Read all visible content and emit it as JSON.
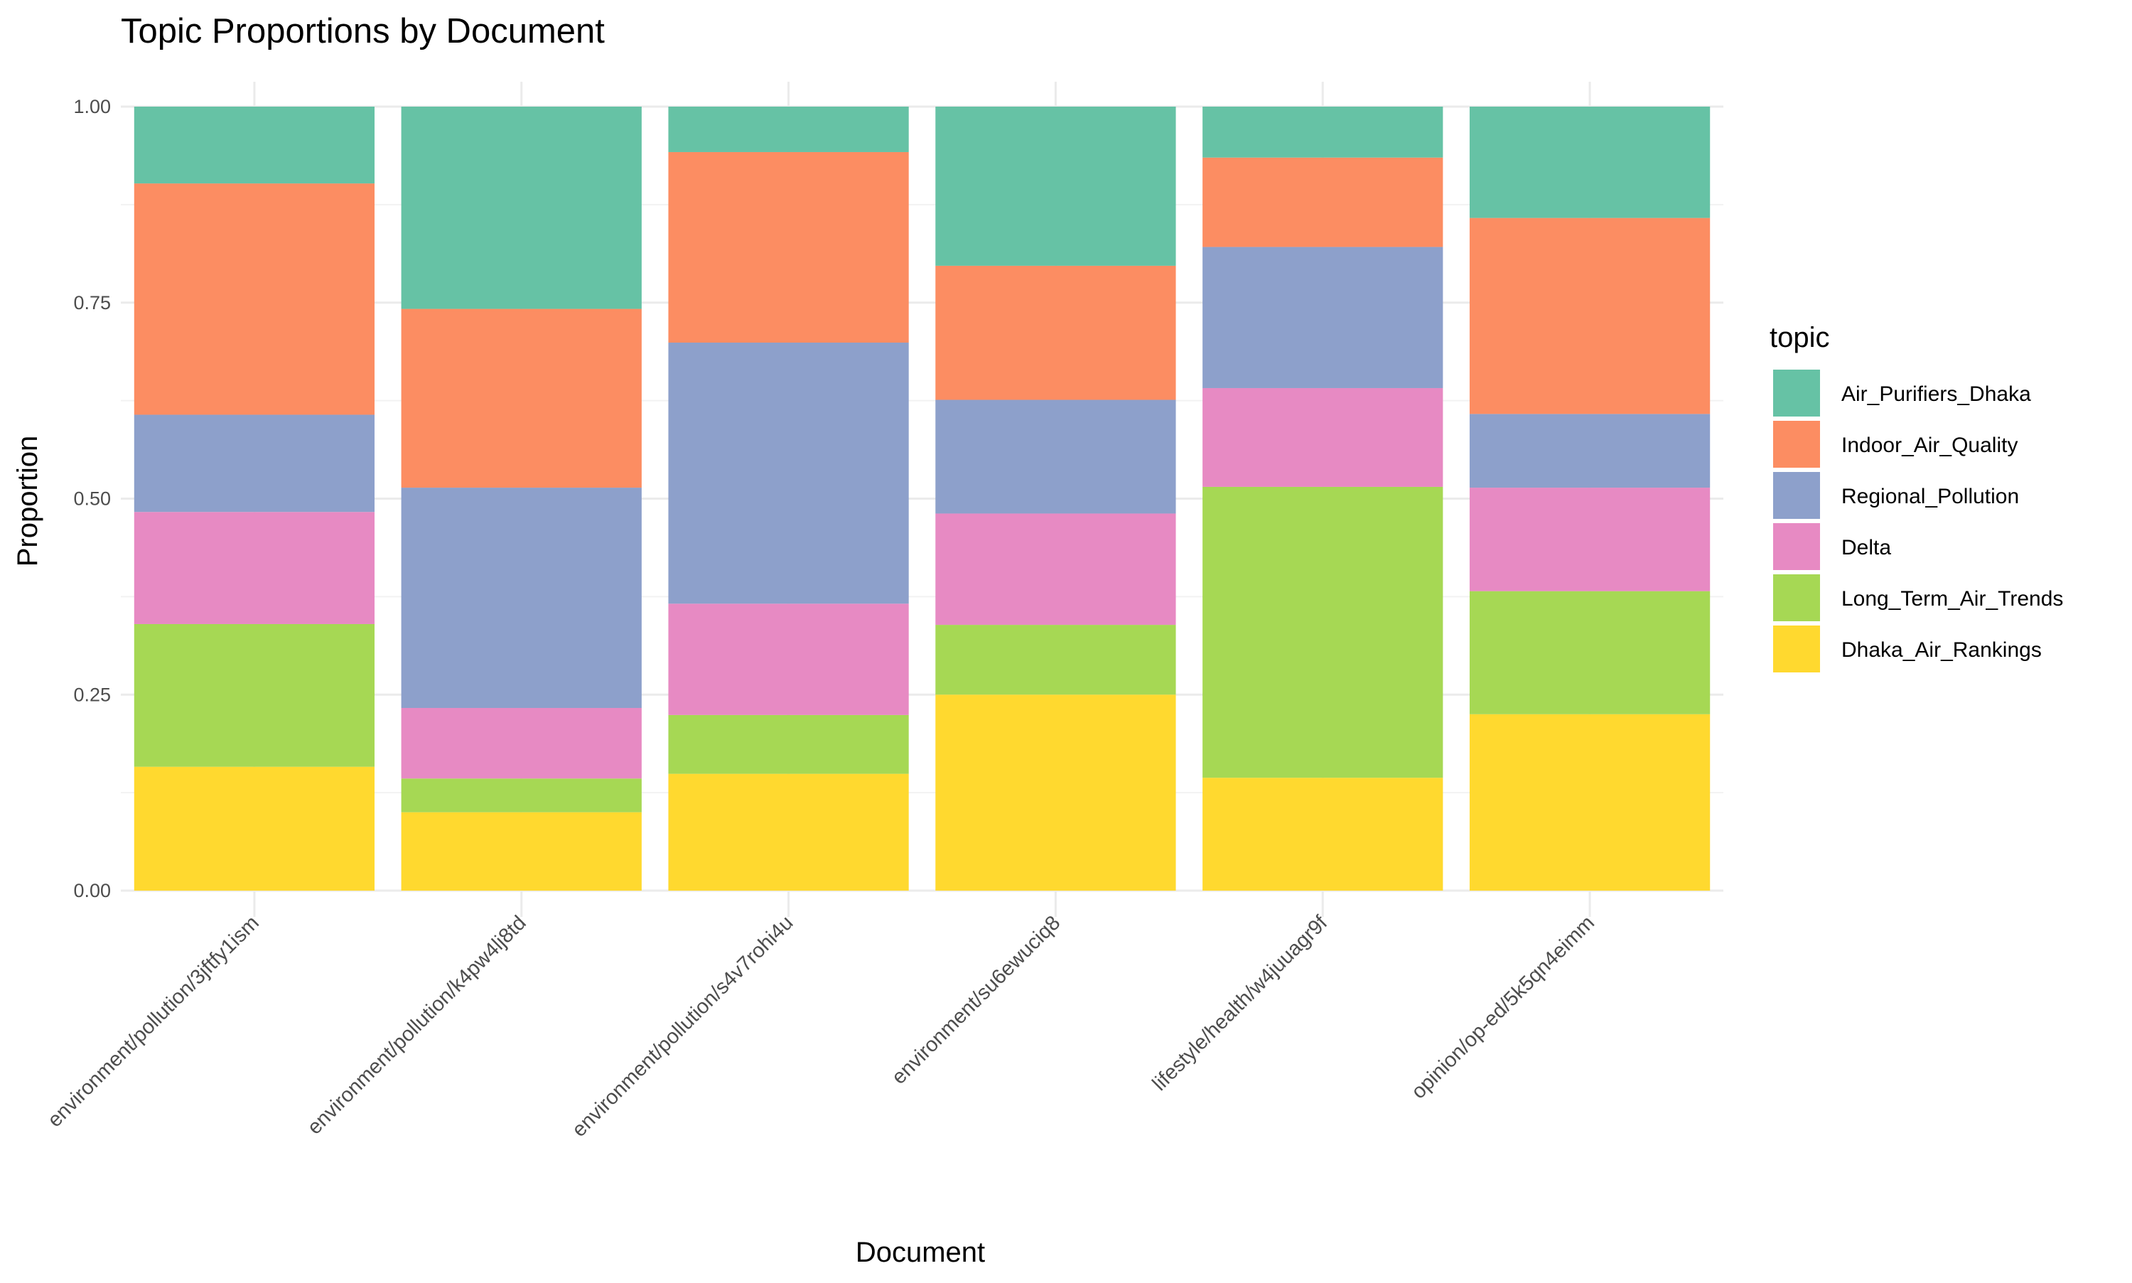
{
  "chart_data": {
    "type": "bar",
    "stacked": true,
    "title": "Topic Proportions by Document",
    "xlabel": "Document",
    "ylabel": "Proportion",
    "ylim": [
      0,
      1
    ],
    "y_ticks": [
      "0.00",
      "0.25",
      "0.50",
      "0.75",
      "1.00"
    ],
    "y_tick_values": [
      0,
      0.25,
      0.5,
      0.75,
      1.0
    ],
    "grid": true,
    "legend_title": "topic",
    "legend_position": "right",
    "categories": [
      "environment/pollution/3jftfy1ism",
      "environment/pollution/k4pw4lj8td",
      "environment/pollution/s4v7rohi4u",
      "environment/su6ewuciq8",
      "lifestyle/health/w4juuagr9f",
      "opinion/op-ed/5k5qn4eimm"
    ],
    "series": [
      {
        "name": "Air_Purifiers_Dhaka",
        "color": "#66C2A5",
        "values": [
          0.098,
          0.258,
          0.058,
          0.203,
          0.065,
          0.142
        ]
      },
      {
        "name": "Indoor_Air_Quality",
        "color": "#FC8D62",
        "values": [
          0.295,
          0.228,
          0.243,
          0.171,
          0.114,
          0.25
        ]
      },
      {
        "name": "Regional_Pollution",
        "color": "#8DA0CB",
        "values": [
          0.124,
          0.281,
          0.333,
          0.145,
          0.18,
          0.094
        ]
      },
      {
        "name": "Delta",
        "color": "#E78AC3",
        "values": [
          0.143,
          0.09,
          0.142,
          0.142,
          0.126,
          0.132
        ]
      },
      {
        "name": "Long_Term_Air_Trends",
        "color": "#A6D854",
        "values": [
          0.182,
          0.043,
          0.075,
          0.089,
          0.371,
          0.157
        ]
      },
      {
        "name": "Dhaka_Air_Rankings",
        "color": "#FFD92F",
        "values": [
          0.158,
          0.1,
          0.149,
          0.25,
          0.144,
          0.225
        ]
      }
    ]
  }
}
